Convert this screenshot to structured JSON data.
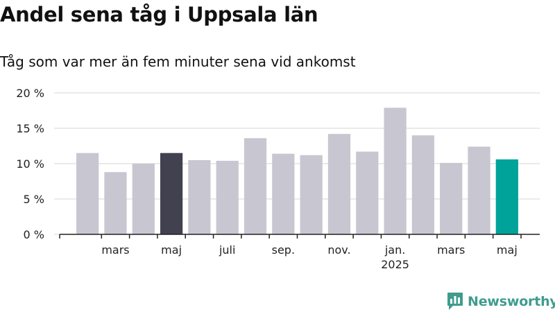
{
  "chart_data": {
    "type": "bar",
    "title": "Andel sena tåg i Uppsala län",
    "subtitle": "Tåg som var mer än fem minuter sena vid ankomst",
    "xlabel": "",
    "ylabel": "",
    "ylim": [
      0,
      20
    ],
    "yticks": [
      0,
      5,
      10,
      15,
      20
    ],
    "ytick_labels": [
      "0 %",
      "5 %",
      "10 %",
      "15 %",
      "20 %"
    ],
    "grid": true,
    "values": [
      11.5,
      8.8,
      10.0,
      11.5,
      10.5,
      10.4,
      13.6,
      11.4,
      11.2,
      14.2,
      11.7,
      17.9,
      14.0,
      10.1,
      12.4,
      10.6
    ],
    "x_tick_labels": [
      {
        "index": 1.5,
        "label": "mars"
      },
      {
        "index": 3.5,
        "label": "maj"
      },
      {
        "index": 5.5,
        "label": "juli"
      },
      {
        "index": 7.5,
        "label": "sep."
      },
      {
        "index": 9.5,
        "label": "nov."
      },
      {
        "index": 11.5,
        "label": "jan.",
        "sublabel": "2025"
      },
      {
        "index": 13.5,
        "label": "mars"
      },
      {
        "index": 15.5,
        "label": "maj"
      }
    ],
    "highlight": {
      "3": "#41414f",
      "15": "#00a39a"
    },
    "colors": {
      "bar": "#c8c7d1",
      "highlight_dark": "#41414f",
      "highlight_teal": "#00a39a",
      "grid": "#dddddd",
      "axis": "#222222"
    }
  },
  "brand": {
    "name": "Newsworthy",
    "icon": "newsworthy-logo-icon",
    "color": "#3f9c8e"
  }
}
